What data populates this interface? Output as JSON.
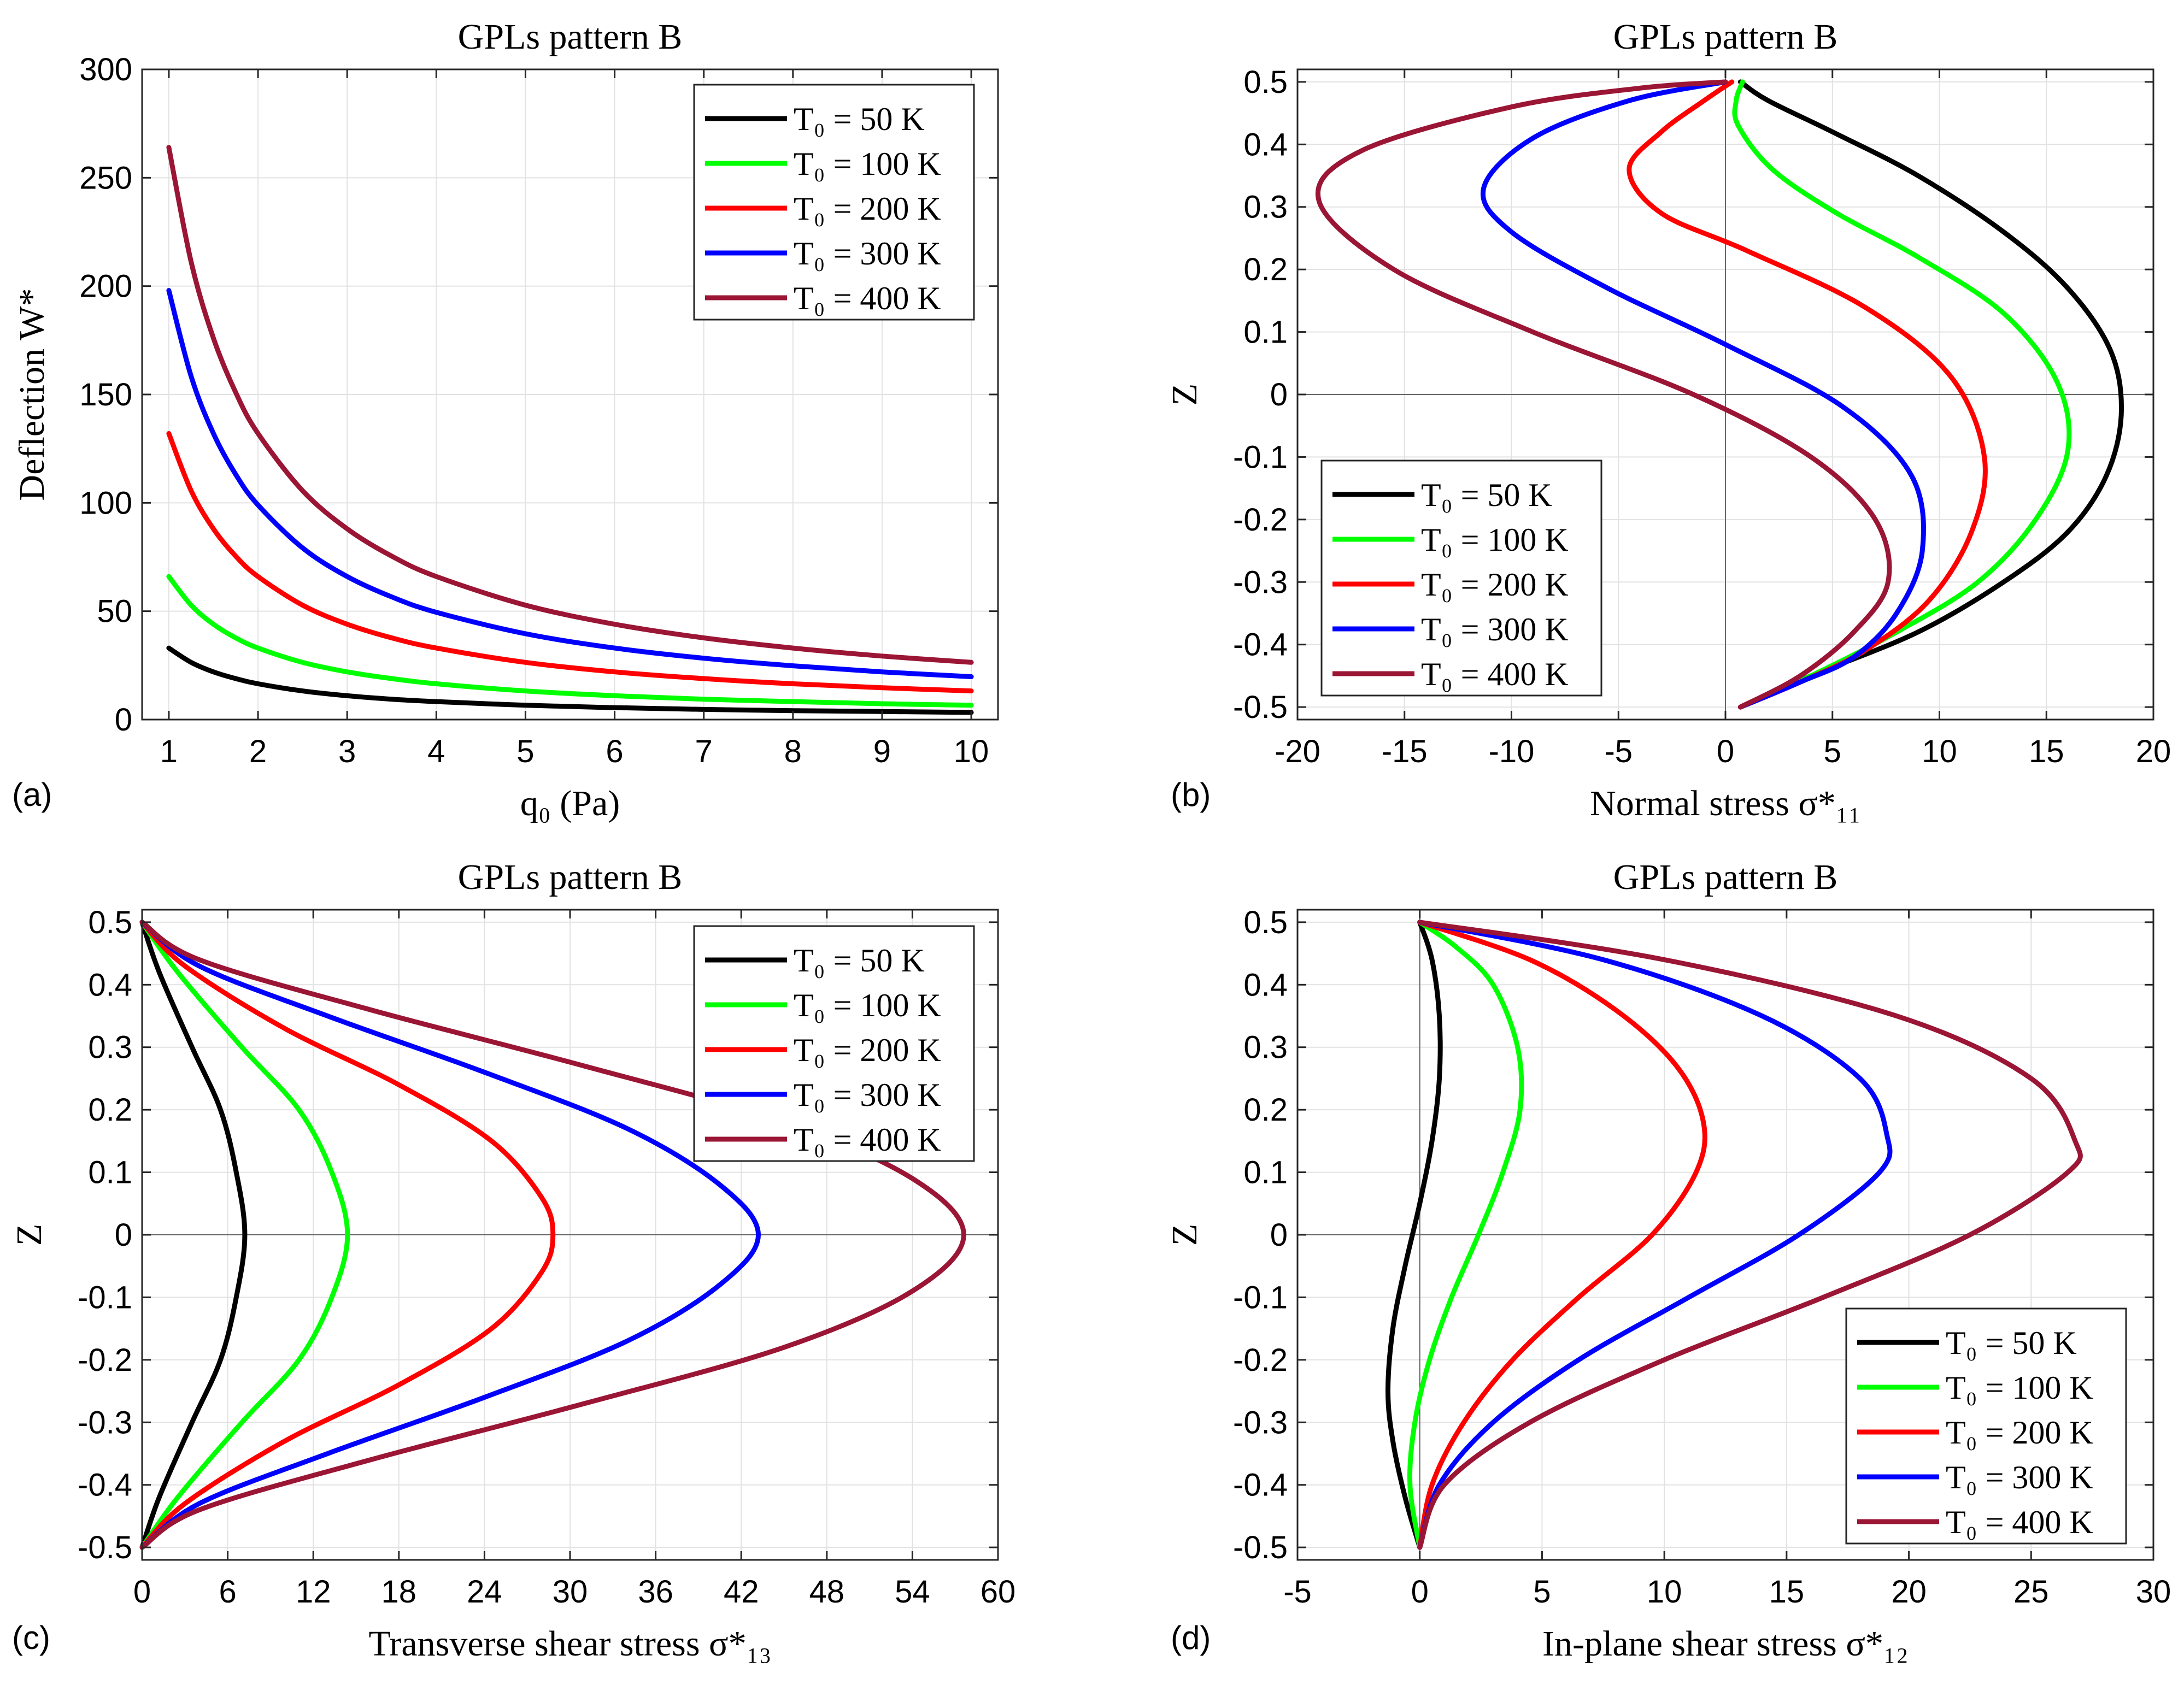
{
  "figure": {
    "panels": [
      "a",
      "b",
      "c",
      "d"
    ]
  },
  "chart_data": [
    {
      "id": "a",
      "type": "line",
      "panel_label": "(a)",
      "title": "GPLs pattern B",
      "xlabel": "q₀ (Pa)",
      "ylabel": "Deflection W*",
      "xlim": [
        0.7,
        10.3
      ],
      "ylim": [
        0,
        300
      ],
      "xticks": [
        1,
        2,
        3,
        4,
        5,
        6,
        7,
        8,
        9,
        10
      ],
      "yticks": [
        0,
        50,
        100,
        150,
        200,
        250,
        300
      ],
      "grid": true,
      "legend_position": "top-right",
      "x": [
        1,
        1.25,
        1.5,
        1.75,
        2,
        2.5,
        3,
        3.5,
        4,
        5,
        6,
        7,
        8,
        9,
        10
      ],
      "series": [
        {
          "name": "T₀ = 50 K",
          "color": "#000000",
          "values": [
            33,
            26.4,
            22,
            18.9,
            16.5,
            13.2,
            11,
            9.4,
            8.3,
            6.6,
            5.5,
            4.7,
            4.1,
            3.7,
            3.3
          ]
        },
        {
          "name": "T₀ = 100 K",
          "color": "#00ff00",
          "values": [
            66,
            52.8,
            44,
            37.7,
            33,
            26.4,
            22,
            18.9,
            16.5,
            13.2,
            11,
            9.4,
            8.3,
            7.3,
            6.6
          ]
        },
        {
          "name": "T₀ = 200 K",
          "color": "#ff0000",
          "values": [
            132,
            105.6,
            88,
            75.4,
            66,
            52.8,
            44,
            37.7,
            33,
            26.4,
            22,
            18.9,
            16.5,
            14.7,
            13.2
          ]
        },
        {
          "name": "T₀ = 300 K",
          "color": "#0000ff",
          "values": [
            198,
            158.4,
            132,
            113.1,
            99,
            79.2,
            66,
            56.6,
            49.5,
            39.6,
            33,
            28.3,
            24.8,
            22,
            19.8
          ]
        },
        {
          "name": "T₀ = 400 K",
          "color": "#9b1535",
          "values": [
            264,
            211.2,
            176,
            150.9,
            132,
            105.6,
            88,
            75.4,
            66,
            52.8,
            44,
            37.7,
            33,
            29.3,
            26.4
          ]
        }
      ]
    },
    {
      "id": "b",
      "type": "line",
      "panel_label": "(b)",
      "title": "GPLs pattern B",
      "xlabel": "Normal stress σ*₁₁",
      "ylabel": "Z",
      "xlim": [
        -20,
        20
      ],
      "ylim": [
        -0.52,
        0.52
      ],
      "xticks": [
        -20,
        -15,
        -10,
        -5,
        0,
        5,
        10,
        15,
        20
      ],
      "yticks": [
        -0.5,
        -0.4,
        -0.3,
        -0.2,
        -0.1,
        0,
        0.1,
        0.2,
        0.3,
        0.4,
        0.5
      ],
      "ytick_labels": [
        "-0.5",
        "-0.4",
        "-0.3",
        "-0.2",
        "-0.1",
        "0",
        "0.1",
        "0.2",
        "0.3",
        "0.4",
        "0.5"
      ],
      "grid": true,
      "legend_position": "bottom-left",
      "series": [
        {
          "name": "T₀ = 50 K",
          "color": "#000000",
          "points": [
            [
              0.7,
              -0.5
            ],
            [
              4,
              -0.45
            ],
            [
              9,
              -0.38
            ],
            [
              13,
              -0.3
            ],
            [
              16,
              -0.22
            ],
            [
              17.8,
              -0.13
            ],
            [
              18.5,
              -0.03
            ],
            [
              18,
              0.07
            ],
            [
              16,
              0.17
            ],
            [
              13,
              0.26
            ],
            [
              9,
              0.35
            ],
            [
              5,
              0.42
            ],
            [
              2,
              0.47
            ],
            [
              0.7,
              0.5
            ]
          ]
        },
        {
          "name": "T₀ = 100 K",
          "color": "#00ff00",
          "points": [
            [
              0.7,
              -0.5
            ],
            [
              4,
              -0.45
            ],
            [
              8,
              -0.38
            ],
            [
              11.8,
              -0.3
            ],
            [
              14.5,
              -0.2
            ],
            [
              16,
              -0.09
            ],
            [
              15.5,
              0.02
            ],
            [
              13,
              0.13
            ],
            [
              9,
              0.22
            ],
            [
              5.2,
              0.29
            ],
            [
              2.2,
              0.36
            ],
            [
              0.6,
              0.43
            ],
            [
              0.5,
              0.47
            ],
            [
              0.8,
              0.5
            ]
          ]
        },
        {
          "name": "T₀ = 200 K",
          "color": "#ff0000",
          "points": [
            [
              0.7,
              -0.5
            ],
            [
              3.5,
              -0.46
            ],
            [
              6.5,
              -0.41
            ],
            [
              9.5,
              -0.33
            ],
            [
              11.5,
              -0.22
            ],
            [
              12.1,
              -0.1
            ],
            [
              10.5,
              0.03
            ],
            [
              6.5,
              0.14
            ],
            [
              1,
              0.23
            ],
            [
              -3,
              0.29
            ],
            [
              -4.5,
              0.36
            ],
            [
              -3,
              0.42
            ],
            [
              -1,
              0.47
            ],
            [
              0.3,
              0.5
            ]
          ]
        },
        {
          "name": "T₀ = 300 K",
          "color": "#0000ff",
          "points": [
            [
              0.7,
              -0.5
            ],
            [
              3.5,
              -0.46
            ],
            [
              6,
              -0.42
            ],
            [
              8,
              -0.35
            ],
            [
              9.2,
              -0.25
            ],
            [
              8.7,
              -0.13
            ],
            [
              5.5,
              -0.02
            ],
            [
              0,
              0.08
            ],
            [
              -5.5,
              0.17
            ],
            [
              -10,
              0.26
            ],
            [
              -11.3,
              0.33
            ],
            [
              -9,
              0.41
            ],
            [
              -4.5,
              0.47
            ],
            [
              0,
              0.5
            ]
          ]
        },
        {
          "name": "T₀ = 400 K",
          "color": "#9b1535",
          "points": [
            [
              0.7,
              -0.5
            ],
            [
              3.5,
              -0.45
            ],
            [
              6,
              -0.38
            ],
            [
              7.6,
              -0.3
            ],
            [
              7,
              -0.2
            ],
            [
              4,
              -0.1
            ],
            [
              -1.5,
              0
            ],
            [
              -9,
              0.1
            ],
            [
              -15.5,
              0.2
            ],
            [
              -19,
              0.31
            ],
            [
              -17,
              0.39
            ],
            [
              -10,
              0.46
            ],
            [
              -4,
              0.49
            ],
            [
              0,
              0.5
            ]
          ]
        }
      ]
    },
    {
      "id": "c",
      "type": "line",
      "panel_label": "(c)",
      "title": "GPLs pattern B",
      "xlabel": "Transverse shear stress σ*₁₃",
      "ylabel": "Z",
      "xlim": [
        0,
        60
      ],
      "ylim": [
        -0.52,
        0.52
      ],
      "xticks": [
        0,
        6,
        12,
        18,
        24,
        30,
        36,
        42,
        48,
        54,
        60
      ],
      "yticks": [
        -0.5,
        -0.4,
        -0.3,
        -0.2,
        -0.1,
        0,
        0.1,
        0.2,
        0.3,
        0.4,
        0.5
      ],
      "ytick_labels": [
        "-0.5",
        "-0.4",
        "-0.3",
        "-0.2",
        "-0.1",
        "0",
        "0.1",
        "0.2",
        "0.3",
        "0.4",
        "0.5"
      ],
      "grid": true,
      "legend_position": "top-right",
      "series": [
        {
          "name": "T₀ = 50 K",
          "color": "#000000",
          "points": [
            [
              0,
              -0.5
            ],
            [
              1.2,
              -0.42
            ],
            [
              3.5,
              -0.3
            ],
            [
              5.5,
              -0.2
            ],
            [
              6.6,
              -0.1
            ],
            [
              7.2,
              0
            ],
            [
              6.6,
              0.1
            ],
            [
              5.5,
              0.2
            ],
            [
              3.5,
              0.3
            ],
            [
              1.2,
              0.42
            ],
            [
              0,
              0.5
            ]
          ]
        },
        {
          "name": "T₀ = 100 K",
          "color": "#00ff00",
          "points": [
            [
              0,
              -0.5
            ],
            [
              2.5,
              -0.42
            ],
            [
              7,
              -0.3
            ],
            [
              11,
              -0.2
            ],
            [
              13.3,
              -0.1
            ],
            [
              14.4,
              0
            ],
            [
              13.3,
              0.1
            ],
            [
              11,
              0.2
            ],
            [
              7,
              0.3
            ],
            [
              2.5,
              0.42
            ],
            [
              0,
              0.5
            ]
          ]
        },
        {
          "name": "T₀ = 200 K",
          "color": "#ff0000",
          "points": [
            [
              0,
              -0.5
            ],
            [
              3,
              -0.43
            ],
            [
              10,
              -0.33
            ],
            [
              18,
              -0.24
            ],
            [
              24.5,
              -0.15
            ],
            [
              28,
              -0.06
            ],
            [
              28.8,
              0
            ],
            [
              28,
              0.06
            ],
            [
              24.5,
              0.15
            ],
            [
              18,
              0.24
            ],
            [
              10,
              0.33
            ],
            [
              3,
              0.43
            ],
            [
              0,
              0.5
            ]
          ]
        },
        {
          "name": "T₀ = 300 K",
          "color": "#0000ff",
          "points": [
            [
              0,
              -0.5
            ],
            [
              4,
              -0.43
            ],
            [
              13,
              -0.35
            ],
            [
              24,
              -0.26
            ],
            [
              34,
              -0.17
            ],
            [
              40.5,
              -0.08
            ],
            [
              43.2,
              0
            ],
            [
              40.5,
              0.08
            ],
            [
              34,
              0.17
            ],
            [
              24,
              0.26
            ],
            [
              13,
              0.35
            ],
            [
              4,
              0.43
            ],
            [
              0,
              0.5
            ]
          ]
        },
        {
          "name": "T₀ = 400 K",
          "color": "#9b1535",
          "points": [
            [
              0,
              -0.5
            ],
            [
              4,
              -0.44
            ],
            [
              16,
              -0.36
            ],
            [
              31,
              -0.27
            ],
            [
              45,
              -0.18
            ],
            [
              54,
              -0.09
            ],
            [
              57.6,
              0
            ],
            [
              54,
              0.09
            ],
            [
              45,
              0.18
            ],
            [
              31,
              0.27
            ],
            [
              16,
              0.36
            ],
            [
              4,
              0.44
            ],
            [
              0,
              0.5
            ]
          ]
        }
      ]
    },
    {
      "id": "d",
      "type": "line",
      "panel_label": "(d)",
      "title": "GPLs pattern B",
      "xlabel": "In-plane shear stress σ*₁₂",
      "ylabel": "Z",
      "xlim": [
        -5,
        30
      ],
      "ylim": [
        -0.52,
        0.52
      ],
      "xticks": [
        -5,
        0,
        5,
        10,
        15,
        20,
        25,
        30
      ],
      "yticks": [
        -0.5,
        -0.4,
        -0.3,
        -0.2,
        -0.1,
        0,
        0.1,
        0.2,
        0.3,
        0.4,
        0.5
      ],
      "ytick_labels": [
        "-0.5",
        "-0.4",
        "-0.3",
        "-0.2",
        "-0.1",
        "0",
        "0.1",
        "0.2",
        "0.3",
        "0.4",
        "0.5"
      ],
      "grid": true,
      "legend_position": "bottom-right",
      "series": [
        {
          "name": "T₀ = 50 K",
          "color": "#000000",
          "points": [
            [
              0,
              -0.5
            ],
            [
              -0.6,
              -0.42
            ],
            [
              -1.1,
              -0.33
            ],
            [
              -1.3,
              -0.25
            ],
            [
              -1.1,
              -0.15
            ],
            [
              -0.6,
              -0.05
            ],
            [
              0,
              0.05
            ],
            [
              0.5,
              0.15
            ],
            [
              0.8,
              0.25
            ],
            [
              0.8,
              0.35
            ],
            [
              0.5,
              0.44
            ],
            [
              0,
              0.5
            ]
          ]
        },
        {
          "name": "T₀ = 100 K",
          "color": "#00ff00",
          "points": [
            [
              0,
              -0.5
            ],
            [
              -0.4,
              -0.4
            ],
            [
              -0.2,
              -0.3
            ],
            [
              0.4,
              -0.2
            ],
            [
              1.3,
              -0.1
            ],
            [
              2.4,
              0
            ],
            [
              3.4,
              0.1
            ],
            [
              4.1,
              0.2
            ],
            [
              4,
              0.3
            ],
            [
              3,
              0.4
            ],
            [
              1.5,
              0.46
            ],
            [
              0,
              0.5
            ]
          ]
        },
        {
          "name": "T₀ = 200 K",
          "color": "#ff0000",
          "points": [
            [
              0,
              -0.5
            ],
            [
              0.5,
              -0.4
            ],
            [
              1.8,
              -0.3
            ],
            [
              3.8,
              -0.2
            ],
            [
              6.5,
              -0.1
            ],
            [
              9.5,
              0
            ],
            [
              11.3,
              0.1
            ],
            [
              11.6,
              0.18
            ],
            [
              10.5,
              0.27
            ],
            [
              8,
              0.36
            ],
            [
              4.5,
              0.44
            ],
            [
              0,
              0.5
            ]
          ]
        },
        {
          "name": "T₀ = 300 K",
          "color": "#0000ff",
          "points": [
            [
              0,
              -0.5
            ],
            [
              0.8,
              -0.4
            ],
            [
              3,
              -0.3
            ],
            [
              6.5,
              -0.2
            ],
            [
              11,
              -0.1
            ],
            [
              15.5,
              0
            ],
            [
              18.8,
              0.1
            ],
            [
              19.1,
              0.16
            ],
            [
              18,
              0.25
            ],
            [
              14,
              0.35
            ],
            [
              7.5,
              0.44
            ],
            [
              0,
              0.5
            ]
          ]
        },
        {
          "name": "T₀ = 400 K",
          "color": "#9b1535",
          "points": [
            [
              0,
              -0.5
            ],
            [
              1,
              -0.4
            ],
            [
              4.5,
              -0.3
            ],
            [
              10,
              -0.2
            ],
            [
              16.5,
              -0.1
            ],
            [
              22.5,
              0
            ],
            [
              26.5,
              0.1
            ],
            [
              26.8,
              0.15
            ],
            [
              25,
              0.25
            ],
            [
              19.5,
              0.35
            ],
            [
              10,
              0.44
            ],
            [
              0,
              0.5
            ]
          ]
        }
      ]
    }
  ]
}
